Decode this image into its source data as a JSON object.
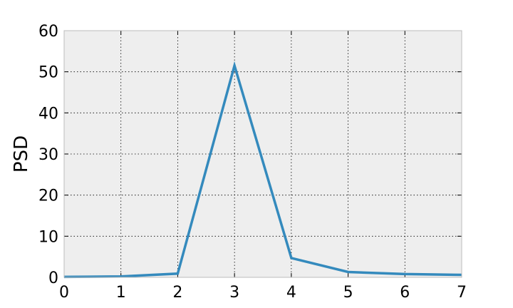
{
  "chart_data": {
    "type": "line",
    "title": "",
    "xlabel": "",
    "ylabel": "PSD",
    "xlim": [
      0,
      7
    ],
    "ylim": [
      0,
      60
    ],
    "xticks": [
      0,
      1,
      2,
      3,
      4,
      5,
      6,
      7
    ],
    "yticks": [
      0,
      10,
      20,
      30,
      40,
      50,
      60
    ],
    "grid": true,
    "legend": "none",
    "colors": {
      "line": "#348abd",
      "plot_bg": "#eeeeee",
      "frame": "#bcbcbc"
    },
    "series": [
      {
        "x": [
          0,
          1,
          2,
          3,
          4,
          5,
          6,
          7
        ],
        "y": [
          0.1,
          0.2,
          0.9,
          51.5,
          4.7,
          1.3,
          0.8,
          0.6
        ]
      }
    ]
  }
}
